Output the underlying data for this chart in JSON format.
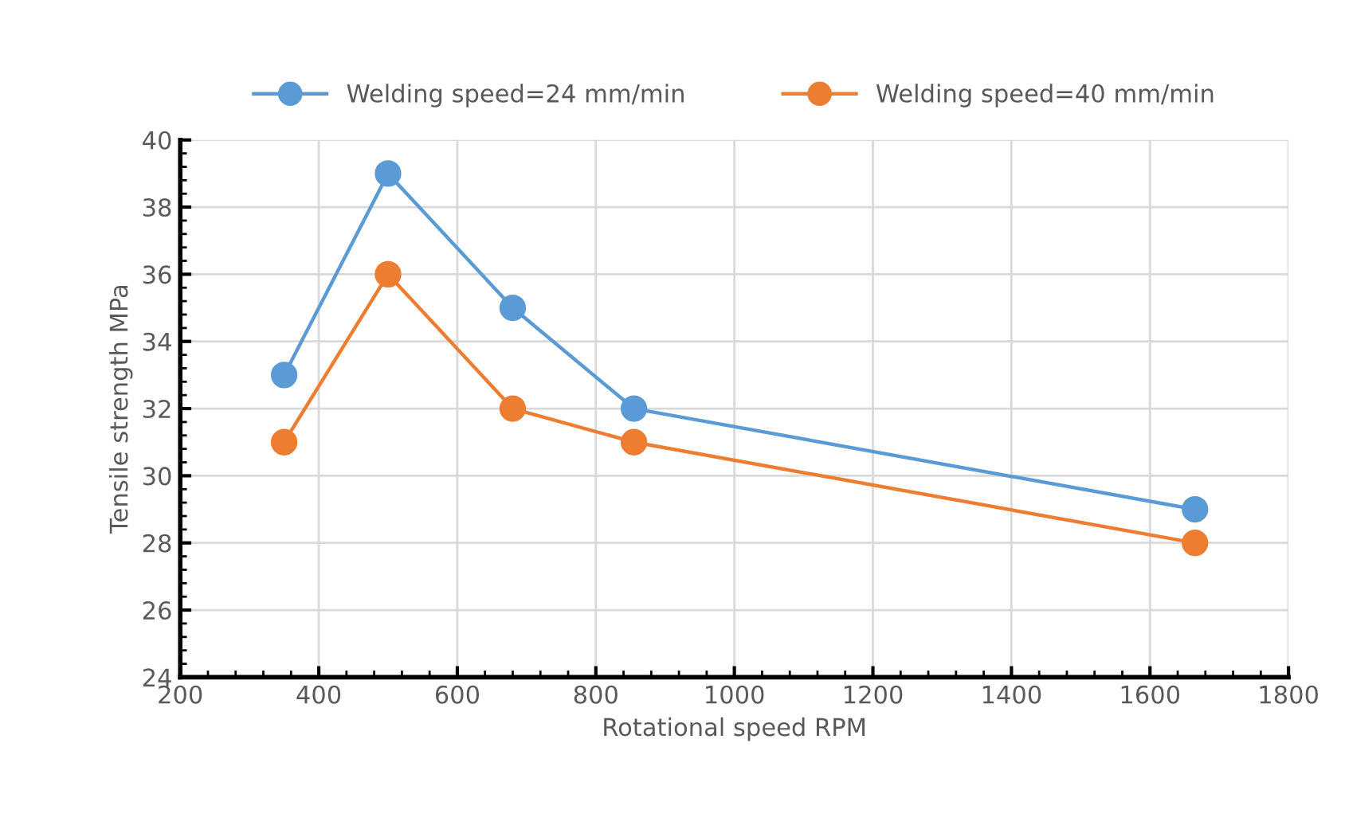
{
  "chart_data": {
    "type": "line",
    "xlabel": "Rotational speed RPM",
    "ylabel": "Tensile strength MPa",
    "x": [
      350,
      500,
      680,
      855,
      1665
    ],
    "series": [
      {
        "name": "Welding speed=24 mm/min",
        "color": "#5b9bd5",
        "values": [
          33,
          39,
          35,
          32,
          29
        ]
      },
      {
        "name": "Welding speed=40 mm/min",
        "color": "#ed7d31",
        "values": [
          31,
          36,
          32,
          31,
          28
        ]
      }
    ],
    "xlim": [
      200,
      1800
    ],
    "xticks": [
      200,
      400,
      600,
      800,
      1000,
      1200,
      1400,
      1600,
      1800
    ],
    "ylim": [
      24,
      40
    ],
    "yticks": [
      24,
      26,
      28,
      30,
      32,
      34,
      36,
      38,
      40
    ],
    "grid": true,
    "legend": "top",
    "marker": "circle",
    "line_style": "solid"
  }
}
